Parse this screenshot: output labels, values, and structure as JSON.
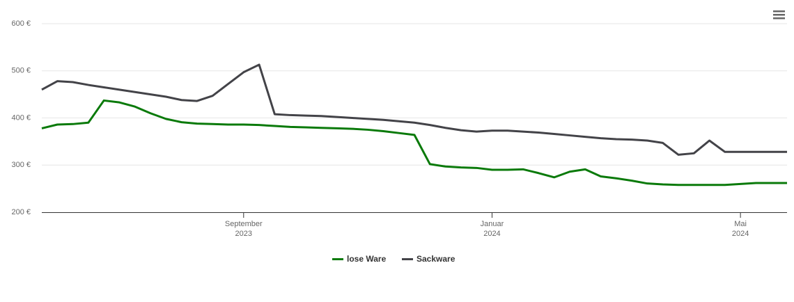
{
  "chart_data": {
    "type": "line",
    "categories": [
      null,
      null,
      null,
      null,
      null,
      null,
      null,
      null,
      null,
      null,
      null,
      null,
      null,
      "September\n2023",
      null,
      null,
      null,
      null,
      null,
      null,
      null,
      null,
      null,
      null,
      null,
      null,
      null,
      null,
      null,
      "Januar\n2024",
      null,
      null,
      null,
      null,
      null,
      null,
      null,
      null,
      null,
      null,
      null,
      null,
      null,
      null,
      null,
      "Mai\n2024",
      null,
      null,
      null
    ],
    "series": [
      {
        "name": "lose Ware",
        "color": "#0a7a0a",
        "values": [
          378,
          386,
          387,
          390,
          437,
          433,
          424,
          410,
          398,
          391,
          388,
          387,
          386,
          386,
          385,
          383,
          381,
          380,
          379,
          378,
          377,
          375,
          372,
          368,
          364,
          302,
          297,
          295,
          294,
          290,
          290,
          291,
          283,
          274,
          286,
          291,
          276,
          272,
          267,
          261,
          259,
          258,
          258,
          258,
          258,
          260,
          262,
          262,
          262
        ]
      },
      {
        "name": "Sackware",
        "color": "#434348",
        "values": [
          460,
          478,
          476,
          470,
          465,
          460,
          455,
          450,
          445,
          438,
          436,
          447,
          472,
          497,
          513,
          408,
          406,
          405,
          404,
          402,
          400,
          398,
          396,
          393,
          390,
          385,
          379,
          374,
          371,
          373,
          373,
          371,
          369,
          366,
          363,
          360,
          357,
          355,
          354,
          352,
          347,
          322,
          325,
          352,
          328,
          328,
          328,
          328,
          328
        ]
      }
    ],
    "ylim": [
      200,
      600
    ],
    "yticks": [
      {
        "value": 200,
        "label": "200 €"
      },
      {
        "value": 300,
        "label": "300 €"
      },
      {
        "value": 400,
        "label": "400 €"
      },
      {
        "value": 500,
        "label": "500 €"
      },
      {
        "value": 600,
        "label": "600 €"
      }
    ],
    "grid": true,
    "legend": "bottom"
  }
}
